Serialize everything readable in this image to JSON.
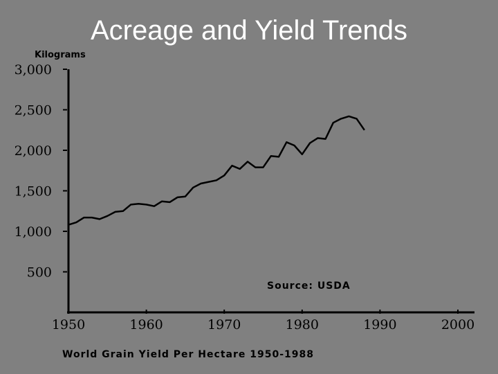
{
  "slide": {
    "title": "Acreage and Yield Trends"
  },
  "chart_data": {
    "type": "line",
    "unit_label": "Kilograms",
    "source": "Source: USDA",
    "caption": "World Grain Yield Per Hectare 1950-1988",
    "y_ticks": [
      "3,000",
      "2,500",
      "2,000",
      "1,500",
      "1,000",
      "500"
    ],
    "y_tick_values": [
      3000,
      2500,
      2000,
      1500,
      1000,
      500
    ],
    "x_ticks": [
      "1950",
      "1960",
      "1970",
      "1980",
      "1990",
      "2000"
    ],
    "x_tick_values": [
      1950,
      1960,
      1970,
      1980,
      1990,
      2000
    ],
    "xlim": [
      1950,
      2000
    ],
    "ylim": [
      0,
      3000
    ],
    "grid": false,
    "series": [
      {
        "x": [
          1950,
          1951,
          1952,
          1953,
          1954,
          1955,
          1956,
          1957,
          1958,
          1959,
          1960,
          1961,
          1962,
          1963,
          1964,
          1965,
          1966,
          1967,
          1968,
          1969,
          1970,
          1971,
          1972,
          1973,
          1974,
          1975,
          1976,
          1977,
          1978,
          1979,
          1980,
          1981,
          1982,
          1983,
          1984,
          1985,
          1986,
          1987,
          1988
        ],
        "y": [
          1080,
          1110,
          1170,
          1170,
          1150,
          1190,
          1240,
          1250,
          1330,
          1340,
          1330,
          1310,
          1370,
          1360,
          1420,
          1430,
          1540,
          1590,
          1610,
          1630,
          1690,
          1810,
          1770,
          1860,
          1790,
          1790,
          1930,
          1920,
          2100,
          2060,
          1950,
          2090,
          2150,
          2140,
          2340,
          2390,
          2420,
          2390,
          2250
        ],
        "color": "#000000"
      }
    ]
  }
}
